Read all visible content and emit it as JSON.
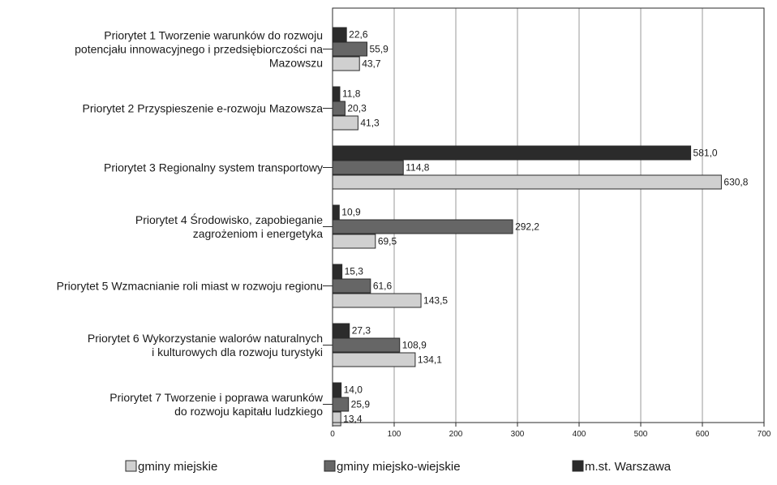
{
  "chart_data": {
    "type": "bar",
    "orientation": "horizontal",
    "categories": [
      [
        "Priorytet 1 Tworzenie warunków do rozwoju",
        "potencjału innowacyjnego i przedsiębiorczości na",
        "Mazowszu"
      ],
      [
        "Priorytet 2 Przyspieszenie e-rozwoju Mazowsza"
      ],
      [
        "Priorytet 3 Regionalny system transportowy"
      ],
      [
        "Priorytet 4 Środowisko, zapobieganie",
        "zagrożeniom i energetyka"
      ],
      [
        "Priorytet 5 Wzmacnianie roli miast w rozwoju regionu"
      ],
      [
        "Priorytet 6 Wykorzystanie walorów naturalnych",
        "i kulturowych dla rozwoju turystyki"
      ],
      [
        "Priorytet 7 Tworzenie i poprawa warunków",
        "do rozwoju kapitału ludzkiego"
      ]
    ],
    "series": [
      {
        "name": "m.st. Warszawa",
        "color": "#2b2b2b",
        "values": [
          22.6,
          11.8,
          581.0,
          10.9,
          15.3,
          27.3,
          14.0
        ],
        "labels": [
          "22,6",
          "11,8",
          "581,0",
          "10,9",
          "15,3",
          "27,3",
          "14,0"
        ]
      },
      {
        "name": "gminy miejsko-wiejskie",
        "color": "#666666",
        "values": [
          55.9,
          20.3,
          114.8,
          292.2,
          61.6,
          108.9,
          25.9
        ],
        "labels": [
          "55,9",
          "20,3",
          "114,8",
          "292,2",
          "61,6",
          "108,9",
          "25,9"
        ]
      },
      {
        "name": "gminy miejskie",
        "color": "#d0d0d0",
        "values": [
          43.7,
          41.3,
          630.8,
          69.5,
          143.5,
          134.1,
          13.4
        ],
        "labels": [
          "43,7",
          "41,3",
          "630,8",
          "69,5",
          "143,5",
          "134,1",
          "13,4"
        ]
      }
    ],
    "xlim": [
      0,
      700
    ],
    "xticks": [
      0,
      100,
      200,
      300,
      400,
      500,
      600,
      700
    ],
    "xtick_labels": [
      "0",
      "100",
      "200",
      "300",
      "400",
      "500",
      "600",
      "700"
    ],
    "grid": true,
    "legend": {
      "placement": "bottom",
      "order": [
        "gminy miejskie",
        "gminy miejsko-wiejskie",
        "m.st. Warszawa"
      ]
    }
  }
}
